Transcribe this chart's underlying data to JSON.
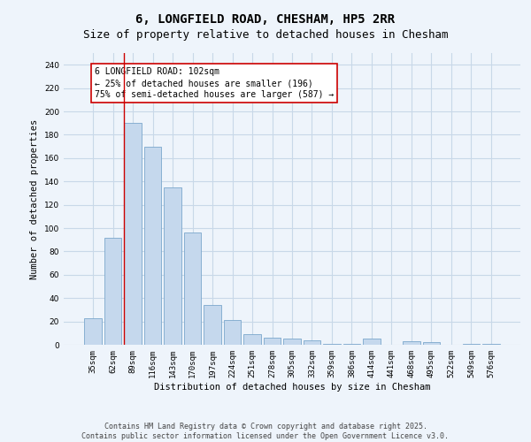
{
  "title": "6, LONGFIELD ROAD, CHESHAM, HP5 2RR",
  "subtitle": "Size of property relative to detached houses in Chesham",
  "xlabel": "Distribution of detached houses by size in Chesham",
  "ylabel": "Number of detached properties",
  "bar_values": [
    23,
    92,
    190,
    170,
    135,
    96,
    34,
    21,
    9,
    6,
    5,
    4,
    1,
    1,
    5,
    0,
    3,
    2,
    0,
    1,
    1
  ],
  "bar_labels": [
    "35sqm",
    "62sqm",
    "89sqm",
    "116sqm",
    "143sqm",
    "170sqm",
    "197sqm",
    "224sqm",
    "251sqm",
    "278sqm",
    "305sqm",
    "332sqm",
    "359sqm",
    "386sqm",
    "414sqm",
    "441sqm",
    "468sqm",
    "495sqm",
    "522sqm",
    "549sqm",
    "576sqm"
  ],
  "bar_color": "#c5d8ed",
  "bar_edge_color": "#7ba7cc",
  "grid_color": "#c8d8e8",
  "bg_color": "#eef4fb",
  "vline_color": "#cc0000",
  "annotation_text": "6 LONGFIELD ROAD: 102sqm\n← 25% of detached houses are smaller (196)\n75% of semi-detached houses are larger (587) →",
  "annotation_box_color": "#ffffff",
  "annotation_box_edge": "#cc0000",
  "ylim": [
    0,
    250
  ],
  "yticks": [
    0,
    20,
    40,
    60,
    80,
    100,
    120,
    140,
    160,
    180,
    200,
    220,
    240
  ],
  "footer_line1": "Contains HM Land Registry data © Crown copyright and database right 2025.",
  "footer_line2": "Contains public sector information licensed under the Open Government Licence v3.0.",
  "title_fontsize": 10,
  "subtitle_fontsize": 9,
  "label_fontsize": 7.5,
  "tick_fontsize": 6.5,
  "annotation_fontsize": 7,
  "footer_fontsize": 6
}
